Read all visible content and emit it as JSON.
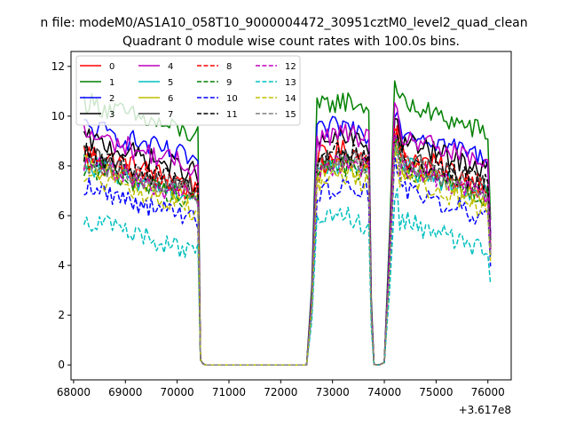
{
  "chart_data": {
    "type": "line",
    "suptitle": "n file: modeM0/AS1A10_058T10_9000004472_30951cztM0_level2_quad_clean",
    "title": "Quadrant 0 module wise count rates with 100.0s bins.",
    "xlabel": "",
    "ylabel": "",
    "x_offset_label": "+3.617e8",
    "xlim": [
      67950,
      76450
    ],
    "ylim": [
      -0.6,
      12.6
    ],
    "x_ticks": [
      68000,
      69000,
      70000,
      71000,
      72000,
      73000,
      74000,
      75000,
      76000
    ],
    "y_ticks": [
      0,
      2,
      4,
      6,
      8,
      10,
      12
    ],
    "x_tick_labels": [
      "68000",
      "69000",
      "70000",
      "71000",
      "72000",
      "73000",
      "74000",
      "75000",
      "76000"
    ],
    "y_tick_labels": [
      "0",
      "2",
      "4",
      "6",
      "8",
      "10",
      "12"
    ],
    "grid": false,
    "legend_placement": "top-left",
    "legend_columns": 4,
    "segments": [
      {
        "start": 68200,
        "end": 70400,
        "dropTo": 70500
      },
      {
        "gap": [
          70500,
          72500
        ]
      },
      {
        "riseFrom": 72500,
        "start": 72700,
        "end": 73700,
        "dropTo": 73800
      },
      {
        "gapMin": [
          73800,
          74000
        ]
      },
      {
        "riseFrom": 74000,
        "start": 74200,
        "end": 76050
      }
    ],
    "series": [
      {
        "name": "0",
        "color": "#ff0000",
        "dash": "solid",
        "level": 8.6
      },
      {
        "name": "1",
        "color": "#008000",
        "dash": "solid",
        "level": 10.6
      },
      {
        "name": "2",
        "color": "#0000ff",
        "dash": "solid",
        "level": 9.6
      },
      {
        "name": "3",
        "color": "#000000",
        "dash": "solid",
        "level": 9.1
      },
      {
        "name": "4",
        "color": "#bf00bf",
        "dash": "solid",
        "level": 9.3
      },
      {
        "name": "5",
        "color": "#00bfbf",
        "dash": "solid",
        "level": 8.1
      },
      {
        "name": "6",
        "color": "#bfbf00",
        "dash": "solid",
        "level": 8.0
      },
      {
        "name": "7",
        "color": "#404040",
        "dash": "solid",
        "level": 8.4
      },
      {
        "name": "8",
        "color": "#ff0000",
        "dash": "dashed",
        "level": 8.3
      },
      {
        "name": "9",
        "color": "#008000",
        "dash": "dashed",
        "level": 8.0
      },
      {
        "name": "10",
        "color": "#0000ff",
        "dash": "dashed",
        "level": 7.2
      },
      {
        "name": "11",
        "color": "#000000",
        "dash": "dashed",
        "level": 8.5
      },
      {
        "name": "12",
        "color": "#bf00bf",
        "dash": "dashed",
        "level": 8.1
      },
      {
        "name": "13",
        "color": "#00bfbf",
        "dash": "dashed",
        "level": 5.9
      },
      {
        "name": "14",
        "color": "#bfbf00",
        "dash": "dashed",
        "level": 7.6
      },
      {
        "name": "15",
        "color": "#808080",
        "dash": "dashed",
        "level": 8.2
      }
    ]
  }
}
